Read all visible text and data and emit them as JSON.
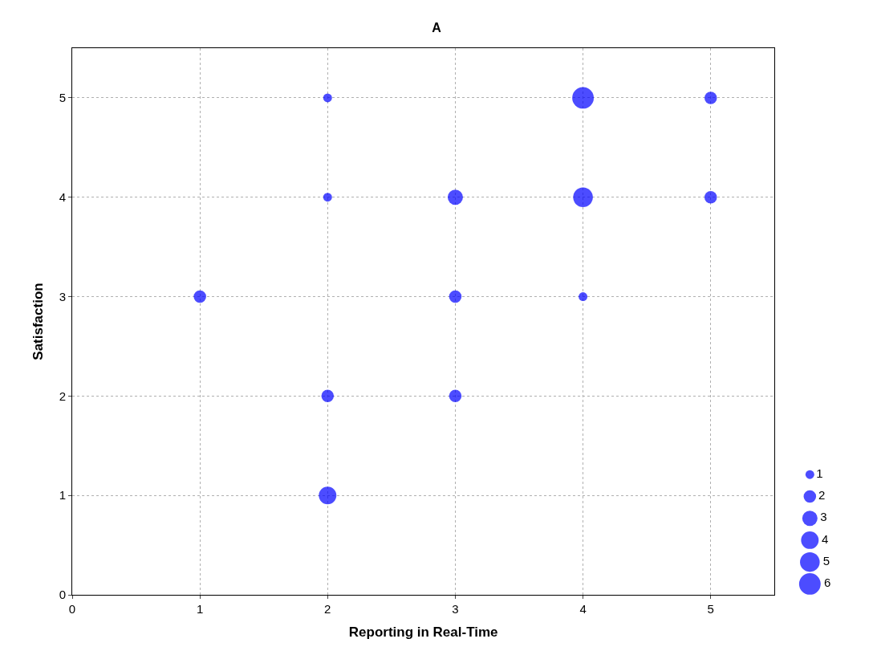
{
  "chart_data": {
    "type": "bubble",
    "title": "A",
    "xlabel": "Reporting in Real-Time",
    "ylabel": "Satisfaction",
    "x": [
      2,
      4,
      5,
      2,
      3,
      4,
      5,
      1,
      3,
      4,
      2,
      3,
      2
    ],
    "values": [
      5,
      5,
      5,
      4,
      4,
      4,
      4,
      3,
      3,
      3,
      2,
      2,
      1
    ],
    "sizes": [
      1,
      6,
      2,
      1,
      3,
      5,
      2,
      2,
      2,
      1,
      2,
      2,
      4
    ],
    "size_legend": [
      1,
      2,
      3,
      4,
      5,
      6
    ],
    "color": "#0000ff",
    "xlim": [
      0,
      5.5
    ],
    "ylim": [
      0,
      5.5
    ],
    "xticks": [
      0,
      1,
      2,
      3,
      4,
      5
    ],
    "yticks": [
      0,
      1,
      2,
      3,
      4,
      5
    ],
    "grid": true,
    "marker": "circle"
  }
}
